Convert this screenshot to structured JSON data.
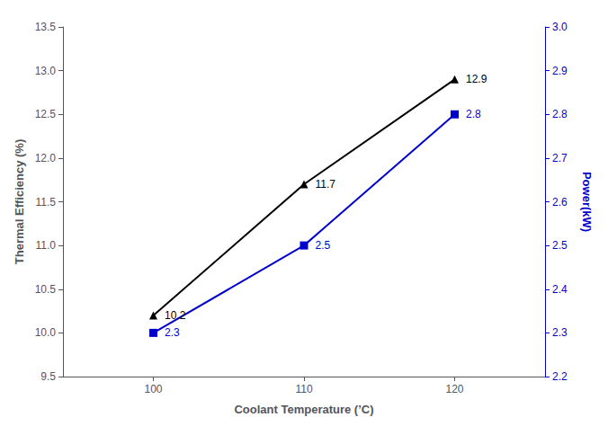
{
  "chart_data": {
    "type": "line",
    "xlabel": "Coolant Temperature (’C)",
    "ylabel": "Thermal Efficiency (%)",
    "y2label": "Power(kW)",
    "x": [
      100,
      110,
      120
    ],
    "series": [
      {
        "values": [
          10.2,
          11.7,
          12.9
        ],
        "color": "black",
        "marker": "triangle"
      },
      {
        "values": [
          2.3,
          2.5,
          2.8
        ],
        "color": "#0000cc",
        "marker": "square",
        "axis": "y2"
      }
    ],
    "xlim": [
      94,
      126
    ],
    "xticks": [
      100,
      110,
      120
    ],
    "ylim": [
      9.5,
      13.5
    ],
    "yticks": [
      9.5,
      {
        "value": 10.0,
        "label": "10.0"
      },
      10.5,
      {
        "value": 11.0,
        "label": "11.0"
      },
      11.5,
      {
        "value": 12.0,
        "label": "12.0"
      },
      12.5,
      {
        "value": 13.0,
        "label": "13.0"
      },
      13.5
    ],
    "y2lim": [
      2.2,
      3.0
    ],
    "y2ticks": [
      2.2,
      2.3,
      2.4,
      2.5,
      2.6,
      2.7,
      2.8,
      2.9,
      {
        "value": 3.0,
        "label": "3.0"
      }
    ],
    "data_labels": true,
    "grid": false
  }
}
